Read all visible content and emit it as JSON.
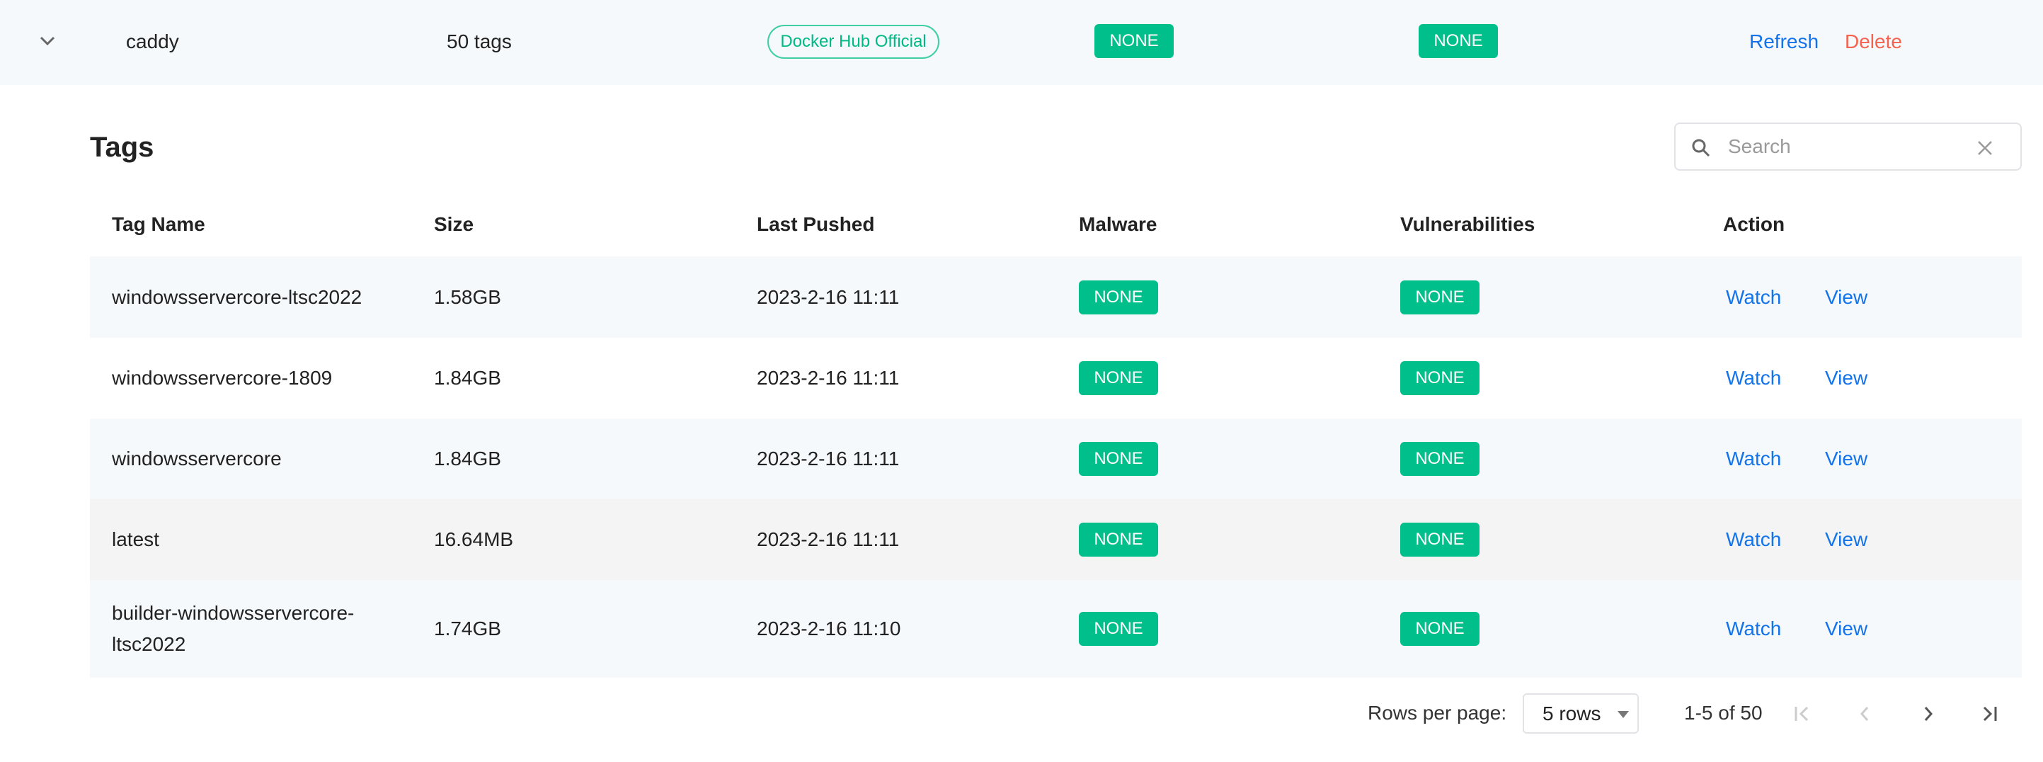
{
  "repo": {
    "name": "caddy",
    "tag_count": "50 tags",
    "badge": "Docker Hub Official",
    "malware": "NONE",
    "vulnerabilities": "NONE",
    "refresh_label": "Refresh",
    "delete_label": "Delete"
  },
  "tags": {
    "title": "Tags",
    "search_placeholder": "Search",
    "columns": [
      "Tag Name",
      "Size",
      "Last Pushed",
      "Malware",
      "Vulnerabilities",
      "Action"
    ],
    "rows": [
      {
        "name": "windowsservercore-ltsc2022",
        "size": "1.58GB",
        "pushed": "2023-2-16 11:11",
        "malware": "NONE",
        "vuln": "NONE",
        "watch": "Watch",
        "view": "View"
      },
      {
        "name": "windowsservercore-1809",
        "size": "1.84GB",
        "pushed": "2023-2-16 11:11",
        "malware": "NONE",
        "vuln": "NONE",
        "watch": "Watch",
        "view": "View"
      },
      {
        "name": "windowsservercore",
        "size": "1.84GB",
        "pushed": "2023-2-16 11:11",
        "malware": "NONE",
        "vuln": "NONE",
        "watch": "Watch",
        "view": "View"
      },
      {
        "name": "latest",
        "size": "16.64MB",
        "pushed": "2023-2-16 11:11",
        "malware": "NONE",
        "vuln": "NONE",
        "watch": "Watch",
        "view": "View"
      },
      {
        "name": "builder-windowsservercore-ltsc2022",
        "name_line1": "builder-windowsservercore-",
        "name_line2": "ltsc2022",
        "size": "1.74GB",
        "pushed": "2023-2-16 11:10",
        "malware": "NONE",
        "vuln": "NONE",
        "watch": "Watch",
        "view": "View"
      }
    ]
  },
  "pagination": {
    "rows_per_page_label": "Rows per page:",
    "rows_value": "5 rows",
    "range": "1-5 of 50"
  },
  "colors": {
    "accent": "#1273eb",
    "danger": "#f5624f",
    "success": "#00bf8a",
    "row_alt": "#f5f9fc",
    "row_hover": "#f4f4f4"
  }
}
